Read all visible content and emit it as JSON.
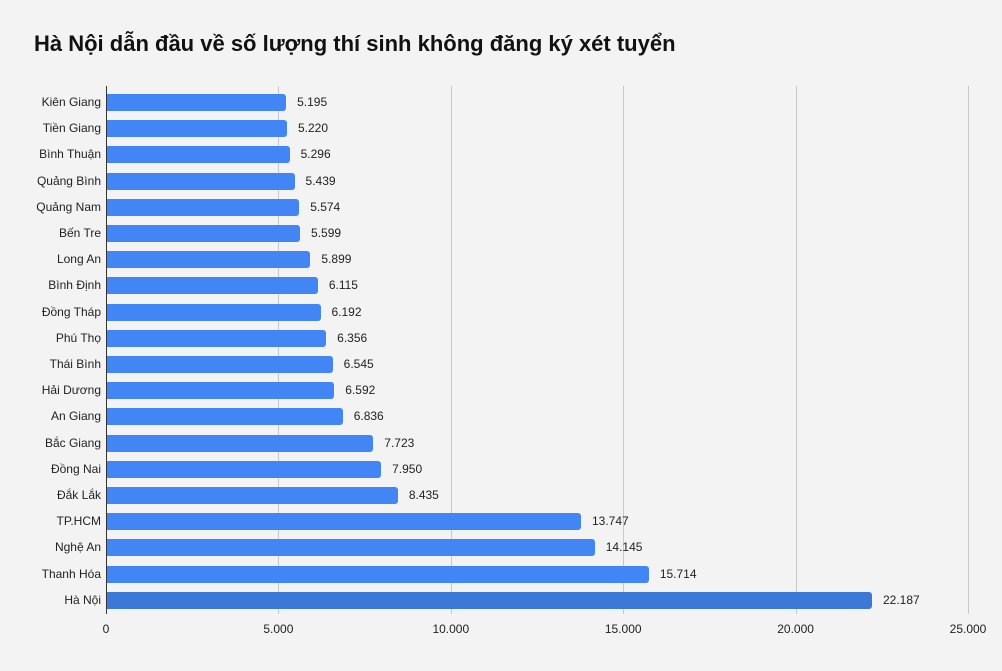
{
  "title": "Hà Nội dẫn đầu về số lượng thí sinh không đăng ký xét tuyển",
  "colors": {
    "bar": "#4285f4",
    "bar_highlight": "#3c78d8",
    "background": "#f3f3f3",
    "gridline": "#c8c8c8"
  },
  "axis": {
    "ticks": [
      "0",
      "5.000",
      "10.000",
      "15.000",
      "20.000",
      "25.000"
    ]
  },
  "chart_data": {
    "type": "bar",
    "orientation": "horizontal",
    "title": "Hà Nội dẫn đầu về số lượng thí sinh không đăng ký xét tuyển",
    "xlabel": "",
    "ylabel": "",
    "xlim": [
      0,
      25000
    ],
    "x_ticks": [
      0,
      5000,
      10000,
      15000,
      20000,
      25000
    ],
    "grid": true,
    "legend": null,
    "categories": [
      "Kiên Giang",
      "Tiền Giang",
      "Bình Thuận",
      "Quảng Bình",
      "Quảng Nam",
      "Bến Tre",
      "Long An",
      "Bình Định",
      "Đồng Tháp",
      "Phú Thọ",
      "Thái Bình",
      "Hải Dương",
      "An Giang",
      "Bắc Giang",
      "Đồng Nai",
      "Đắk Lắk",
      "TP.HCM",
      "Nghệ An",
      "Thanh Hóa",
      "Hà Nội"
    ],
    "values": [
      5195,
      5220,
      5296,
      5439,
      5574,
      5599,
      5899,
      6115,
      6192,
      6356,
      6545,
      6592,
      6836,
      7723,
      7950,
      8435,
      13747,
      14145,
      15714,
      22187
    ],
    "value_labels": [
      "5.195",
      "5.220",
      "5.296",
      "5.439",
      "5.574",
      "5.599",
      "5.899",
      "6.115",
      "6.192",
      "6.356",
      "6.545",
      "6.592",
      "6.836",
      "7.723",
      "7.950",
      "8.435",
      "13.747",
      "14.145",
      "15.714",
      "22.187"
    ]
  }
}
